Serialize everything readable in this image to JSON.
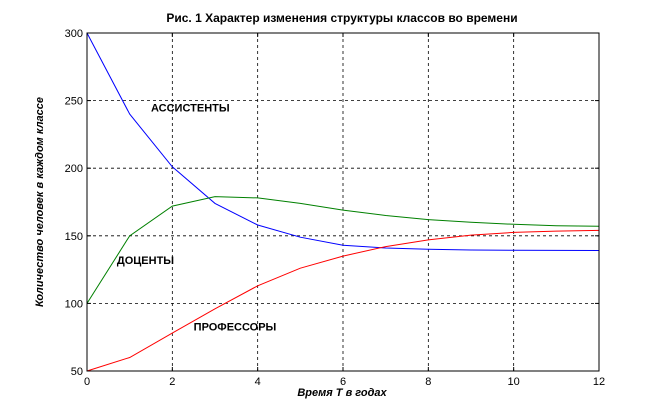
{
  "chart_data": {
    "type": "line",
    "title": "Рис. 1  Характер изменения структуры классов во времени",
    "xlabel": "Время T в годах",
    "ylabel": "Количество человек в каждом классе",
    "xlim": [
      0,
      12
    ],
    "ylim": [
      50,
      300
    ],
    "xticks": [
      0,
      2,
      4,
      6,
      8,
      10,
      12
    ],
    "yticks": [
      50,
      100,
      150,
      200,
      250,
      300
    ],
    "grid": true,
    "x": [
      0,
      1,
      2,
      3,
      4,
      5,
      6,
      7,
      8,
      9,
      10,
      11,
      12
    ],
    "series": [
      {
        "name": "АССИСТЕНТЫ",
        "color": "#0000ff",
        "values": [
          300,
          240,
          201,
          174,
          158,
          149,
          143,
          141,
          140,
          139.5,
          139.3,
          139.2,
          139.1
        ],
        "label_at": [
          1.5,
          242
        ]
      },
      {
        "name": "ДОЦЕНТЫ",
        "color": "#008000",
        "values": [
          100,
          150,
          172,
          179,
          178,
          174,
          169,
          165,
          162,
          160,
          158.5,
          157.5,
          157
        ],
        "label_at": [
          0.7,
          129
        ]
      },
      {
        "name": "ПРОФЕССОРЫ",
        "color": "#ff0000",
        "values": [
          50,
          60,
          78,
          96,
          113,
          126,
          135,
          142,
          147,
          150.5,
          152.5,
          153.5,
          154
        ],
        "label_at": [
          2.5,
          80
        ]
      }
    ]
  }
}
